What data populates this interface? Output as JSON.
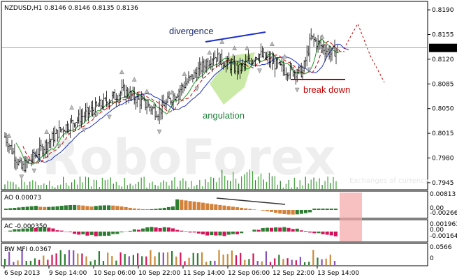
{
  "chart_data": {
    "type": "candlestick",
    "symbol_header": "NZDUSD,H1  0.8146 0.8146 0.8135 0.8136",
    "watermark": "RoboForex",
    "watermark_sub": "Exchanges of currency",
    "price_ticks": [
      "0.8190",
      "0.8155",
      "0.8120",
      "0.8085",
      "0.8050",
      "0.8015",
      "0.7980",
      "0.7945"
    ],
    "current_price": "0.8136",
    "x_ticks": [
      "6 Sep 2013",
      "9 Sep 14:00",
      "10 Sep 06:00",
      "10 Sep 22:00",
      "11 Sep 14:00",
      "12 Sep 06:00",
      "12 Sep 22:00",
      "13 Sep 14:00"
    ],
    "ylim": [
      0.7935,
      0.8198
    ],
    "annotations": {
      "divergence": "divergence",
      "angulation": "angulation",
      "break_down": "break down"
    },
    "panels": {
      "ao": {
        "label": "AO 0.00073",
        "ticks": [
          "0.00813",
          "0.00",
          "-0.00266"
        ]
      },
      "ac": {
        "label": "AC -0.000350",
        "ticks": [
          "0.001963",
          "0.00",
          "-0.00164"
        ]
      },
      "mfi": {
        "label": "BW MFI 0.0367",
        "ticks": [
          "0.0566",
          "0"
        ]
      }
    },
    "colors": {
      "candles": "#000000",
      "ma_green": "#1f9a1f",
      "ma_red": "#c80000",
      "ma_blue": "#1e32c8",
      "ao_up": "#2e7d32",
      "ao_down": "#d4823a",
      "ac_up": "#2e7d32",
      "ac_down": "#d4145a",
      "highlight_red": "#f4a6a6",
      "highlight_green": "#b9e38a",
      "break_down": "#c00000",
      "annotation_text": "#1a2a6a",
      "angulation_text": "#1e7f3a"
    }
  }
}
